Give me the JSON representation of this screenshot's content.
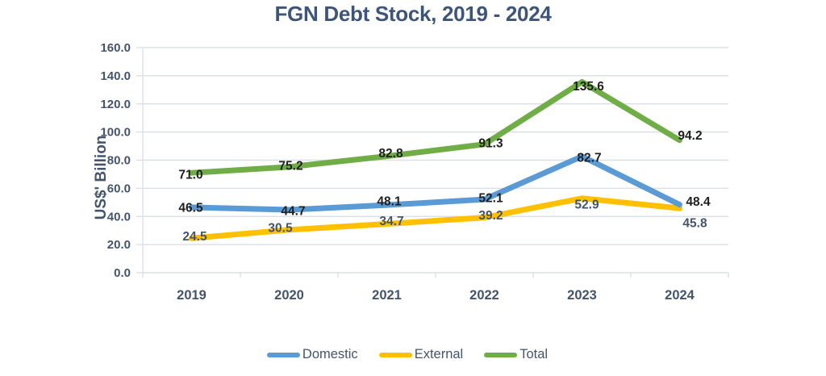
{
  "chart": {
    "title": "FGN Debt Stock, 2019 - 2024",
    "y_axis_title": "US$' Billion"
  },
  "chart_data": {
    "type": "line",
    "title": "FGN Debt Stock, 2019 - 2024",
    "xlabel": "",
    "ylabel": "US$' Billion",
    "categories": [
      "2019",
      "2020",
      "2021",
      "2022",
      "2023",
      "2024"
    ],
    "series": [
      {
        "name": "Domestic",
        "color": "#5B9BD5",
        "label_color": "#1f1f1f",
        "values": [
          46.5,
          44.7,
          48.1,
          52.1,
          82.7,
          48.4
        ]
      },
      {
        "name": "External",
        "color": "#FFC000",
        "label_color": "#44546A",
        "values": [
          24.5,
          30.5,
          34.7,
          39.2,
          52.9,
          45.8
        ]
      },
      {
        "name": "Total",
        "color": "#70AD47",
        "label_color": "#1f1f1f",
        "values": [
          71.0,
          75.2,
          82.8,
          91.3,
          135.6,
          94.2
        ]
      }
    ],
    "ylim": [
      0,
      160
    ],
    "ytick_step": 20,
    "ytick_labels": [
      "0.0",
      "20.0",
      "40.0",
      "60.0",
      "80.0",
      "100.0",
      "120.0",
      "140.0",
      "160.0"
    ],
    "grid": true,
    "legend_position": "bottom",
    "colors": {
      "title_text": "#3E5577",
      "axis_text": "#44546A",
      "gridline": "#DCE0E6",
      "data_label_dark": "#1f1f1f",
      "background": "#FFFFFF"
    }
  }
}
